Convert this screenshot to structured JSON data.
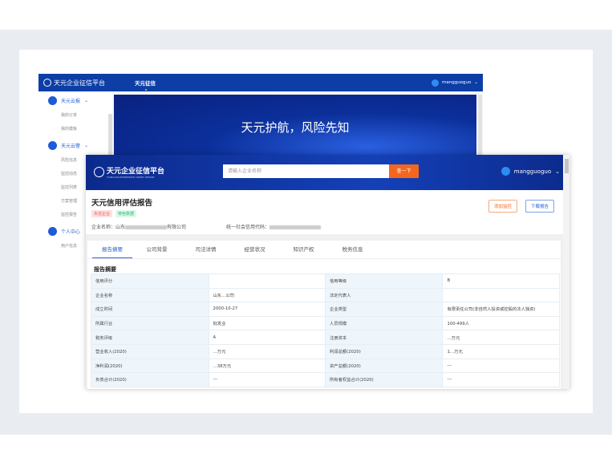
{
  "back": {
    "brand": "天元企业征信平台",
    "nav": "天元征信",
    "user": "mangguoguo",
    "sidebar": [
      {
        "label": "天元云报",
        "items": [
          "我的订单",
          "我的模板"
        ]
      },
      {
        "label": "天元云警",
        "items": [
          "风险信息",
          "监控动态",
          "监控列表",
          "方案管理",
          "监控报告"
        ]
      },
      {
        "label": "个人中心",
        "items": [
          "用户信息"
        ]
      }
    ],
    "banner": "天元护航，风险先知"
  },
  "front": {
    "brand": "天元企业征信平台",
    "brand_sub": "TIANYUAN ENTERPRISE CREDIT REPORT",
    "search_placeholder": "请输入企业名称",
    "search_button": "查一下",
    "user": "mangguoguo",
    "report_title": "天元信用评估报告",
    "tags": [
      "失信企业",
      "特色数据"
    ],
    "company_label": "企业名称：",
    "company_prefix": "山东",
    "company_suffix": "有限公司",
    "credit_code_label": "统一社会信用代码：",
    "add_monitor": "添加监控",
    "download": "下载报告",
    "tabs": [
      "报告摘要",
      "公司背景",
      "司法详情",
      "经营状况",
      "知识产权",
      "税务信息"
    ],
    "section_title": "报告摘要",
    "rows": [
      [
        "信用评分",
        "",
        "信用等级",
        "B"
      ],
      [
        "企业名称",
        "山东…公司",
        "法定代表人",
        ""
      ],
      [
        "成立时间",
        "2000-10-27",
        "企业类型",
        "有限责任公司(非自然人投资或控股的法人独资)"
      ],
      [
        "所属行业",
        "批发业",
        "人员规模",
        "100-499人"
      ],
      [
        "税务评级",
        "A",
        "注册资本",
        "…万元"
      ],
      [
        "营业收入(2020)",
        "…万元",
        "利润总额(2020)",
        "1…万元"
      ],
      [
        "净利润(2020)",
        "…38万元",
        "资产总额(2020)",
        "---"
      ],
      [
        "负债合计(2020)",
        "---",
        "所有者权益合计(2020)",
        "---"
      ]
    ]
  }
}
